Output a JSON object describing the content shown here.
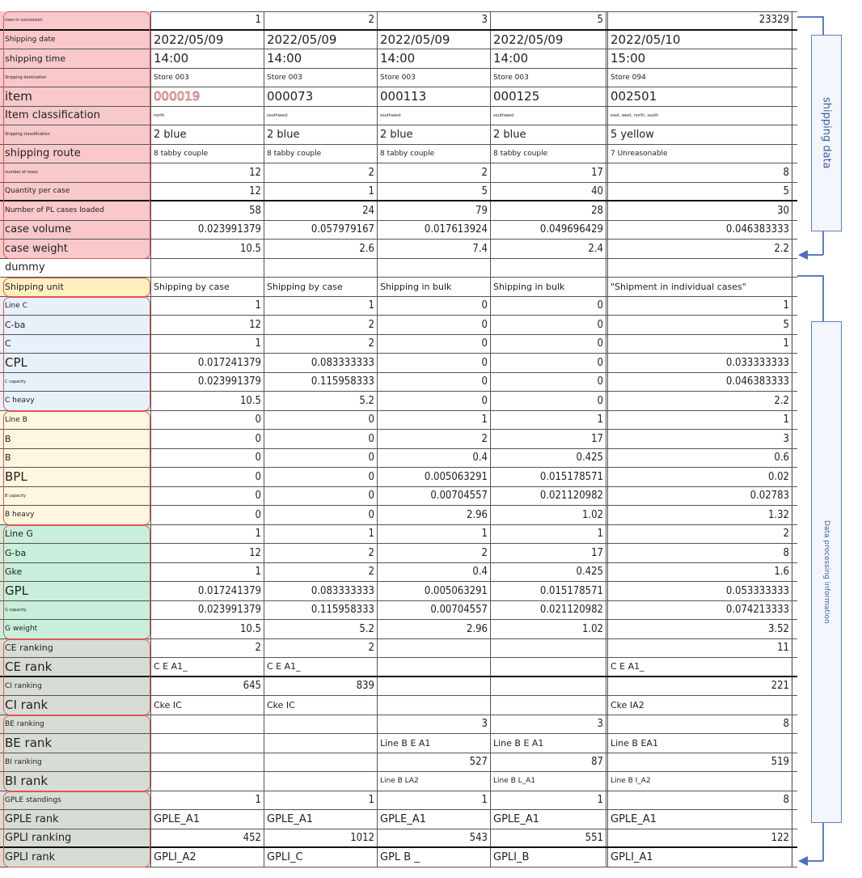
{
  "side_labels": {
    "shipping_data": "shipping data",
    "processing": "Data processing information"
  },
  "colors": {
    "accent": "#5b7fc0",
    "group_border": "#e05555"
  },
  "rows": [
    {
      "label": "rows in succession",
      "ls": "xs",
      "g": "pink",
      "vs": "m",
      "num": true,
      "thick": true,
      "values": [
        "1",
        "2",
        "3",
        "5",
        "23329"
      ]
    },
    {
      "label": "Shipping date",
      "ls": "s",
      "g": "pink",
      "vs": "l",
      "values": [
        "2022/05/09",
        "2022/05/09",
        "2022/05/09",
        "2022/05/09",
        "2022/05/10"
      ]
    },
    {
      "label": "shipping time",
      "ls": "sm",
      "g": "pink",
      "vs": "l",
      "values": [
        "14:00",
        "14:00",
        "14:00",
        "14:00",
        "15:00"
      ]
    },
    {
      "label": "Shipping destination",
      "ls": "xs",
      "g": "pink",
      "vs": "s",
      "values": [
        "Store 003",
        "Store 003",
        "Store 003",
        "Store 003",
        "Store 094"
      ]
    },
    {
      "label": "item",
      "ls": "l",
      "g": "pink",
      "vs": "l",
      "values": [
        "000019",
        "000073",
        "000113",
        "000125",
        "002501"
      ]
    },
    {
      "label": "Item classification",
      "ls": "m",
      "g": "pink",
      "vs": "xs",
      "values": [
        "north",
        "southwest",
        "southwest",
        "southwest",
        "east, west, north, south"
      ]
    },
    {
      "label": "Shipping classification",
      "ls": "xs",
      "g": "pink",
      "vs": "m",
      "values": [
        "2 blue",
        "2 blue",
        "2 blue",
        "2 blue",
        "5 yellow"
      ]
    },
    {
      "label": "shipping route",
      "ls": "m",
      "g": "pink",
      "vs": "s",
      "values": [
        "8 tabby couple",
        "8 tabby couple",
        "8 tabby couple",
        "8 tabby couple",
        "7 Unreasonable"
      ]
    },
    {
      "label": "number of roses",
      "ls": "xs",
      "g": "pink",
      "vs": "m",
      "num": true,
      "values": [
        "12",
        "2",
        "2",
        "17",
        "8"
      ]
    },
    {
      "label": "Quantity per case",
      "ls": "s",
      "g": "pink",
      "vs": "m",
      "num": true,
      "thick": true,
      "values": [
        "12",
        "1",
        "5",
        "40",
        "5"
      ]
    },
    {
      "label": "Number of PL cases loaded",
      "ls": "s",
      "g": "pink",
      "vs": "m",
      "num": true,
      "values": [
        "58",
        "24",
        "79",
        "28",
        "30"
      ]
    },
    {
      "label": "case volume",
      "ls": "m",
      "g": "pink",
      "vs": "m",
      "num": true,
      "values": [
        "0.023991379",
        "0.057979167",
        "0.017613924",
        "0.049696429",
        "0.046383333"
      ]
    },
    {
      "label": "case weight",
      "ls": "m",
      "g": "pink",
      "vs": "m",
      "num": true,
      "values": [
        "10.5",
        "2.6",
        "7.4",
        "2.4",
        "2.2"
      ]
    },
    {
      "label": "dummy",
      "ls": "m",
      "g": "white",
      "vs": "m",
      "values": [
        "",
        "",
        "",
        "",
        ""
      ]
    },
    {
      "label": "Shipping unit",
      "ls": "sm",
      "g": "yellow",
      "vs": "sm",
      "values": [
        "Shipping by case",
        "Shipping by case",
        "Shipping in bulk",
        "Shipping in bulk",
        "\"Shipment in individual cases\""
      ]
    },
    {
      "label": "Line C",
      "ls": "s",
      "g": "blue",
      "vs": "m",
      "num": true,
      "values": [
        "1",
        "1",
        "0",
        "0",
        "1"
      ]
    },
    {
      "label": "C-ba",
      "ls": "sm",
      "g": "blue",
      "vs": "m",
      "num": true,
      "values": [
        "12",
        "2",
        "0",
        "0",
        "5"
      ]
    },
    {
      "label": "C",
      "ls": "sm",
      "g": "blue",
      "vs": "m",
      "num": true,
      "values": [
        "1",
        "2",
        "0",
        "0",
        "1"
      ]
    },
    {
      "label": "CPL",
      "ls": "l",
      "g": "blue",
      "vs": "m",
      "num": true,
      "values": [
        "0.017241379",
        "0.083333333",
        "0",
        "0",
        "0.033333333"
      ]
    },
    {
      "label": "C capacity",
      "ls": "xs",
      "g": "blue",
      "vs": "m",
      "num": true,
      "values": [
        "0.023991379",
        "0.115958333",
        "0",
        "0",
        "0.046383333"
      ]
    },
    {
      "label": "C heavy",
      "ls": "s",
      "g": "blue",
      "vs": "m",
      "num": true,
      "values": [
        "10.5",
        "5.2",
        "0",
        "0",
        "2.2"
      ]
    },
    {
      "label": "Line B",
      "ls": "s",
      "g": "cream",
      "vs": "m",
      "num": true,
      "values": [
        "0",
        "0",
        "1",
        "1",
        "1"
      ]
    },
    {
      "label": "B",
      "ls": "sm",
      "g": "cream",
      "vs": "m",
      "num": true,
      "values": [
        "0",
        "0",
        "2",
        "17",
        "3"
      ]
    },
    {
      "label": "B",
      "ls": "sm",
      "g": "cream",
      "vs": "m",
      "num": true,
      "values": [
        "0",
        "0",
        "0.4",
        "0.425",
        "0.6"
      ]
    },
    {
      "label": "BPL",
      "ls": "l",
      "g": "cream",
      "vs": "m",
      "num": true,
      "values": [
        "0",
        "0",
        "0.005063291",
        "0.015178571",
        "0.02"
      ]
    },
    {
      "label": "B capacity",
      "ls": "xs",
      "g": "cream",
      "vs": "m",
      "num": true,
      "values": [
        "0",
        "0",
        "0.00704557",
        "0.021120982",
        "0.02783"
      ]
    },
    {
      "label": "B heavy",
      "ls": "s",
      "g": "cream",
      "vs": "m",
      "num": true,
      "values": [
        "0",
        "0",
        "2.96",
        "1.02",
        "1.32"
      ]
    },
    {
      "label": "Line G",
      "ls": "sm",
      "g": "green",
      "vs": "m",
      "num": true,
      "values": [
        "1",
        "1",
        "1",
        "1",
        "2"
      ]
    },
    {
      "label": "G-ba",
      "ls": "sm",
      "g": "green",
      "vs": "m",
      "num": true,
      "values": [
        "12",
        "2",
        "2",
        "17",
        "8"
      ]
    },
    {
      "label": "Gke",
      "ls": "sm",
      "g": "green",
      "vs": "m",
      "num": true,
      "values": [
        "1",
        "2",
        "0.4",
        "0.425",
        "1.6"
      ]
    },
    {
      "label": "GPL",
      "ls": "l",
      "g": "green",
      "vs": "m",
      "num": true,
      "values": [
        "0.017241379",
        "0.083333333",
        "0.005063291",
        "0.015178571",
        "0.053333333"
      ]
    },
    {
      "label": "G capacity",
      "ls": "xs",
      "g": "green",
      "vs": "m",
      "num": true,
      "values": [
        "0.023991379",
        "0.115958333",
        "0.00704557",
        "0.021120982",
        "0.074213333"
      ]
    },
    {
      "label": "G weight",
      "ls": "s",
      "g": "green",
      "vs": "m",
      "num": true,
      "values": [
        "10.5",
        "5.2",
        "2.96",
        "1.02",
        "3.52"
      ]
    },
    {
      "label": "CE ranking",
      "ls": "sm",
      "g": "gray",
      "vs": "m",
      "num": true,
      "values": [
        "2",
        "2",
        "",
        "",
        "11"
      ]
    },
    {
      "label": "CE rank",
      "ls": "l",
      "g": "gray",
      "vs": "sm",
      "thick": true,
      "values": [
        "C E A1_",
        "C E A1_",
        "",
        "",
        "C E A1_"
      ]
    },
    {
      "label": "CI ranking",
      "ls": "s",
      "g": "gray",
      "vs": "m",
      "num": true,
      "values": [
        "645",
        "839",
        "",
        "",
        "221"
      ]
    },
    {
      "label": "CI rank",
      "ls": "l",
      "g": "gray",
      "vs": "sm",
      "values": [
        "Cke IC",
        "Cke IC",
        "",
        "",
        "Cke IA2"
      ]
    },
    {
      "label": "BE ranking",
      "ls": "s",
      "g": "gray",
      "vs": "m",
      "num": true,
      "values": [
        "",
        "",
        "3",
        "3",
        "8"
      ]
    },
    {
      "label": "BE rank",
      "ls": "l",
      "g": "gray",
      "vs": "sm",
      "values": [
        "",
        "",
        "Line B E A1",
        "Line B E A1",
        "Line B EA1"
      ]
    },
    {
      "label": "BI ranking",
      "ls": "s",
      "g": "gray",
      "vs": "m",
      "num": true,
      "values": [
        "",
        "",
        "527",
        "87",
        "519"
      ]
    },
    {
      "label": "BI rank",
      "ls": "l",
      "g": "gray",
      "vs": "s",
      "values": [
        "",
        "",
        "Line B LA2",
        "Line B L_A1",
        "Line B I_A2"
      ]
    },
    {
      "label": "GPLE standings",
      "ls": "s",
      "g": "gray",
      "vs": "m",
      "num": true,
      "values": [
        "1",
        "1",
        "1",
        "1",
        "8"
      ]
    },
    {
      "label": "GPLE rank",
      "ls": "m",
      "g": "gray",
      "vs": "m",
      "values": [
        "GPLE_A1",
        "GPLE_A1",
        "GPLE_A1",
        "GPLE_A1",
        "GPLE_A1"
      ]
    },
    {
      "label": "GPLI ranking",
      "ls": "m",
      "g": "gray",
      "vs": "m",
      "num": true,
      "thick": true,
      "values": [
        "452",
        "1012",
        "543",
        "551",
        "122"
      ]
    },
    {
      "label": "GPLI rank",
      "ls": "m",
      "g": "gray",
      "vs": "m",
      "values": [
        "GPLI_A2",
        "GPLI_C",
        "GPL B _",
        "GPLI_B",
        "GPLI_A1"
      ]
    }
  ]
}
